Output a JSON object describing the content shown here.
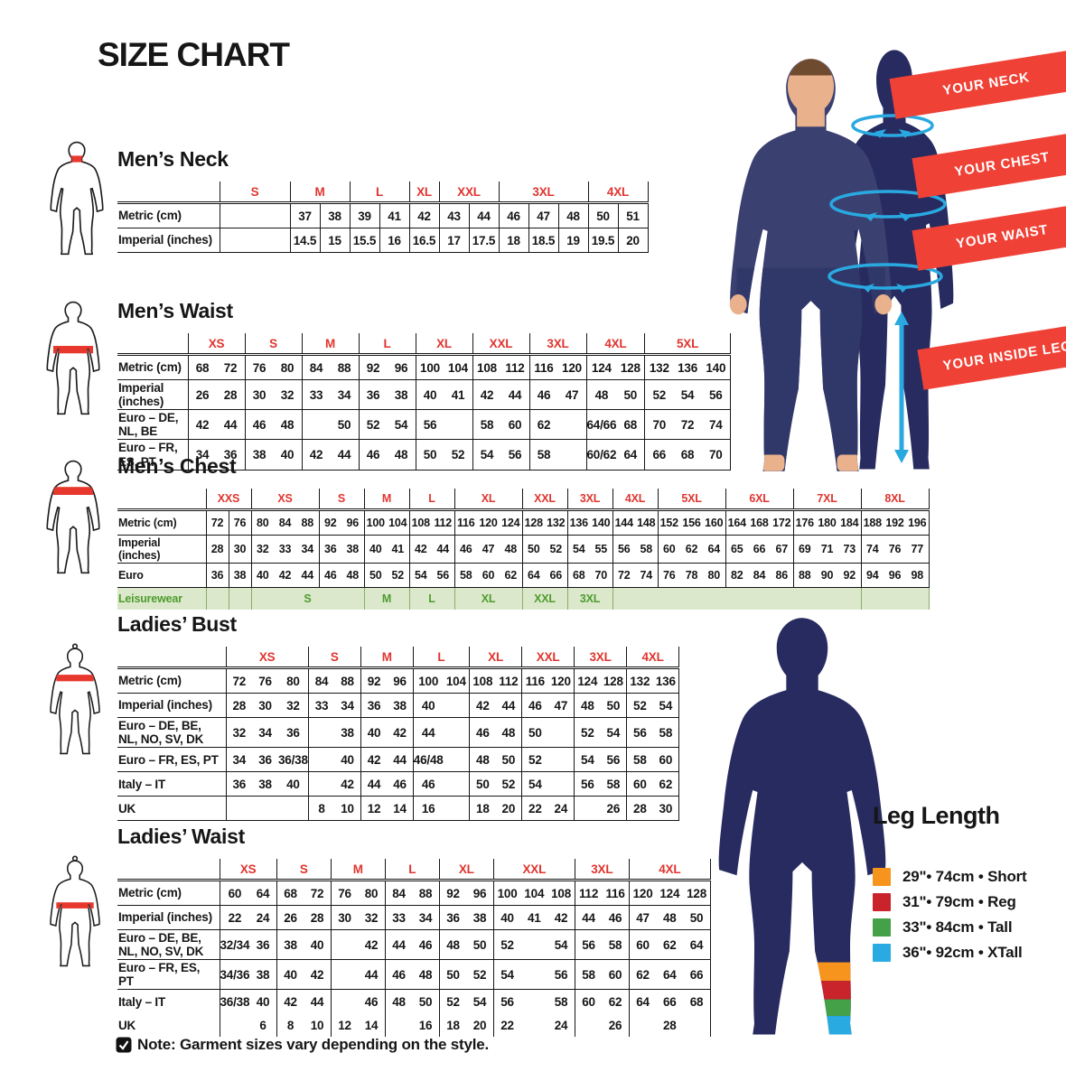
{
  "page_title": "SIZE CHART",
  "note": {
    "icon": "checkbox-check-icon",
    "text": "Note: Garment sizes vary depending on the style."
  },
  "banners": {
    "neck": "YOUR NECK",
    "chest": "YOUR CHEST",
    "waist": "YOUR WAIST",
    "inside_leg": "YOUR INSIDE LEG"
  },
  "leg_length": {
    "title": "Leg Length",
    "items": [
      {
        "color": "#F7941E",
        "label": "29\"• 74cm • Short"
      },
      {
        "color": "#C9242B",
        "label": "31\"• 79cm • Reg"
      },
      {
        "color": "#44A147",
        "label": "33\"• 84cm • Tall"
      },
      {
        "color": "#29ABE2",
        "label": "36\"• 92cm • XTall"
      }
    ]
  },
  "colors": {
    "accent_red": "#E8372C",
    "header_red": "#E0352F",
    "banner_red": "#EF4136",
    "navy": "#272B60",
    "cyan": "#2AA9E1",
    "leisure_bg": "#DBE8CB",
    "leisure_green": "#4E9C2E",
    "skin": "#E9B18C",
    "hair": "#6E4A2E",
    "shirt_navy": "#3A4170",
    "pants_navy": "#303769"
  },
  "icons": {
    "figure_icons": [
      "mens-neck-figure",
      "mens-waist-figure",
      "mens-chest-figure",
      "ladies-bust-figure",
      "ladies-waist-figure"
    ],
    "scene_icons": [
      "neck-measure-ellipse",
      "chest-measure-ellipse",
      "waist-measure-ellipse",
      "inside-leg-arrow"
    ],
    "note_icon": "checkbox-check-icon"
  },
  "tables": [
    {
      "name": "mens-neck",
      "title": "Men’s Neck",
      "groups": [
        {
          "label": "S",
          "span": 1
        },
        {
          "label": "M",
          "span": 2,
          "div": true
        },
        {
          "label": "L",
          "span": 2,
          "div": true
        },
        {
          "label": "XL",
          "span": 1
        },
        {
          "label": "XXL",
          "span": 2,
          "div": true
        },
        {
          "label": "3XL",
          "span": 3,
          "div": true
        },
        {
          "label": "4XL",
          "span": 2,
          "div": true
        }
      ],
      "rows": [
        {
          "label": "Metric (cm)",
          "cells": [
            "",
            "37",
            "38",
            "39",
            "41",
            "42",
            "43",
            "44",
            "46",
            "47",
            "48",
            "50",
            "51"
          ]
        },
        {
          "label": "Imperial (inches)",
          "cells": [
            "",
            "14.5",
            "15",
            "15.5",
            "16",
            "16.5",
            "17",
            "17.5",
            "18",
            "18.5",
            "19",
            "19.5",
            "20"
          ]
        }
      ]
    },
    {
      "name": "mens-waist",
      "title": "Men’s Waist",
      "groups": [
        {
          "label": "XS",
          "span": 2
        },
        {
          "label": "S",
          "span": 2
        },
        {
          "label": "M",
          "span": 2
        },
        {
          "label": "L",
          "span": 2
        },
        {
          "label": "XL",
          "span": 2
        },
        {
          "label": "XXL",
          "span": 2
        },
        {
          "label": "3XL",
          "span": 2
        },
        {
          "label": "4XL",
          "span": 2
        },
        {
          "label": "5XL",
          "span": 3
        }
      ],
      "rows": [
        {
          "label": "Metric (cm)",
          "cells": [
            "68",
            "72",
            "76",
            "80",
            "84",
            "88",
            "92",
            "96",
            "100",
            "104",
            "108",
            "112",
            "116",
            "120",
            "124",
            "128",
            "132",
            "136",
            "140"
          ]
        },
        {
          "label": "Imperial (inches)",
          "cells": [
            "26",
            "28",
            "30",
            "32",
            "33",
            "34",
            "36",
            "38",
            "40",
            "41",
            "42",
            "44",
            "46",
            "47",
            "48",
            "50",
            "52",
            "54",
            "56"
          ]
        },
        {
          "label": "Euro – DE, NL, BE",
          "cells": [
            "42",
            "44",
            "46",
            "48",
            "",
            "50",
            "52",
            "54",
            "56",
            "",
            "58",
            "60",
            "62",
            "",
            "64/66",
            "68",
            "70",
            "72",
            "74"
          ]
        },
        {
          "label": "Euro – FR, ES, PT",
          "cells": [
            "34",
            "36",
            "38",
            "40",
            "42",
            "44",
            "46",
            "48",
            "50",
            "52",
            "54",
            "56",
            "58",
            "",
            "60/62",
            "64",
            "66",
            "68",
            "70"
          ]
        }
      ]
    },
    {
      "name": "mens-chest",
      "title": "Men’s Chest",
      "groups": [
        {
          "label": "XXS",
          "span": 2,
          "div": true
        },
        {
          "label": "XS",
          "span": 3
        },
        {
          "label": "S",
          "span": 2
        },
        {
          "label": "M",
          "span": 2
        },
        {
          "label": "L",
          "span": 2
        },
        {
          "label": "XL",
          "span": 3
        },
        {
          "label": "XXL",
          "span": 2
        },
        {
          "label": "3XL",
          "span": 2
        },
        {
          "label": "4XL",
          "span": 2
        },
        {
          "label": "5XL",
          "span": 3
        },
        {
          "label": "6XL",
          "span": 3
        },
        {
          "label": "7XL",
          "span": 3
        },
        {
          "label": "8XL",
          "span": 3
        }
      ],
      "rows": [
        {
          "label": "Metric (cm)",
          "cells": [
            "72",
            "76",
            "80",
            "84",
            "88",
            "92",
            "96",
            "100",
            "104",
            "108",
            "112",
            "116",
            "120",
            "124",
            "128",
            "132",
            "136",
            "140",
            "144",
            "148",
            "152",
            "156",
            "160",
            "164",
            "168",
            "172",
            "176",
            "180",
            "184",
            "188",
            "192",
            "196"
          ]
        },
        {
          "label": "Imperial (inches)",
          "cells": [
            "28",
            "30",
            "32",
            "33",
            "34",
            "36",
            "38",
            "40",
            "41",
            "42",
            "44",
            "46",
            "47",
            "48",
            "50",
            "52",
            "54",
            "55",
            "56",
            "58",
            "60",
            "62",
            "64",
            "65",
            "66",
            "67",
            "69",
            "71",
            "73",
            "74",
            "76",
            "77"
          ]
        },
        {
          "label": "Euro",
          "cells": [
            "36",
            "38",
            "40",
            "42",
            "44",
            "46",
            "48",
            "50",
            "52",
            "54",
            "56",
            "58",
            "60",
            "62",
            "64",
            "66",
            "68",
            "70",
            "72",
            "74",
            "76",
            "78",
            "80",
            "82",
            "84",
            "86",
            "88",
            "90",
            "92",
            "94",
            "96",
            "98"
          ]
        }
      ],
      "leisure": {
        "label": "Leisurewear",
        "cells": [
          {
            "label": "",
            "span": 1
          },
          {
            "label": "",
            "span": 1
          },
          {
            "label": "S",
            "span": 5
          },
          {
            "label": "M",
            "span": 2
          },
          {
            "label": "L",
            "span": 2
          },
          {
            "label": "XL",
            "span": 3
          },
          {
            "label": "XXL",
            "span": 2
          },
          {
            "label": "3XL",
            "span": 2
          },
          {
            "label": "",
            "span": 11
          },
          {
            "label": "",
            "span": 3
          }
        ]
      }
    },
    {
      "name": "ladies-bust",
      "title": "Ladies’ Bust",
      "groups": [
        {
          "label": "XS",
          "span": 3
        },
        {
          "label": "S",
          "span": 2
        },
        {
          "label": "M",
          "span": 2
        },
        {
          "label": "L",
          "span": 2
        },
        {
          "label": "XL",
          "span": 2
        },
        {
          "label": "XXL",
          "span": 2
        },
        {
          "label": "3XL",
          "span": 2
        },
        {
          "label": "4XL",
          "span": 2
        }
      ],
      "rows": [
        {
          "label": "Metric (cm)",
          "cells": [
            "72",
            "76",
            "80",
            "84",
            "88",
            "92",
            "96",
            "100",
            "104",
            "108",
            "112",
            "116",
            "120",
            "124",
            "128",
            "132",
            "136"
          ]
        },
        {
          "label": "Imperial (inches)",
          "cells": [
            "28",
            "30",
            "32",
            "33",
            "34",
            "36",
            "38",
            "40",
            "",
            "42",
            "44",
            "46",
            "47",
            "48",
            "50",
            "52",
            "54"
          ]
        },
        {
          "label": "Euro –  DE, BE, NL, NO, SV, DK",
          "cells": [
            "32",
            "34",
            "36",
            "",
            "38",
            "40",
            "42",
            "44",
            "",
            "46",
            "48",
            "50",
            "",
            "52",
            "54",
            "56",
            "58"
          ]
        },
        {
          "label": "Euro – FR, ES, PT",
          "cells": [
            "34",
            "36",
            "36/38",
            "",
            "40",
            "42",
            "44",
            "46/48",
            "",
            "48",
            "50",
            "52",
            "",
            "54",
            "56",
            "58",
            "60"
          ]
        },
        {
          "label": "Italy – IT",
          "cells": [
            "36",
            "38",
            "40",
            "",
            "42",
            "44",
            "46",
            "46",
            "",
            "50",
            "52",
            "54",
            "",
            "56",
            "58",
            "60",
            "62"
          ]
        },
        {
          "label": "UK",
          "cells": [
            "",
            "",
            "",
            "8",
            "10",
            "12",
            "14",
            "16",
            "",
            "18",
            "20",
            "22",
            "24",
            "",
            "26",
            "28",
            "30"
          ]
        }
      ]
    },
    {
      "name": "ladies-waist",
      "title": "Ladies’ Waist",
      "groups": [
        {
          "label": "XS",
          "span": 2
        },
        {
          "label": "S",
          "span": 2
        },
        {
          "label": "M",
          "span": 2
        },
        {
          "label": "L",
          "span": 2
        },
        {
          "label": "XL",
          "span": 2
        },
        {
          "label": "XXL",
          "span": 3
        },
        {
          "label": "3XL",
          "span": 2
        },
        {
          "label": "4XL",
          "span": 3
        }
      ],
      "rows": [
        {
          "label": "Metric (cm)",
          "cells": [
            "60",
            "64",
            "68",
            "72",
            "76",
            "80",
            "84",
            "88",
            "92",
            "96",
            "100",
            "104",
            "108",
            "112",
            "116",
            "120",
            "124",
            "128"
          ]
        },
        {
          "label": "Imperial (inches)",
          "cells": [
            "22",
            "24",
            "26",
            "28",
            "30",
            "32",
            "33",
            "34",
            "36",
            "38",
            "40",
            "41",
            "42",
            "44",
            "46",
            "47",
            "48",
            "50"
          ]
        },
        {
          "label": "Euro – DE, BE, NL, NO, SV, DK",
          "cells": [
            "32/34",
            "36",
            "38",
            "40",
            "",
            "42",
            "44",
            "46",
            "48",
            "50",
            "52",
            "",
            "54",
            "56",
            "58",
            "60",
            "62",
            "64"
          ]
        },
        {
          "label": "Euro – FR, ES, PT",
          "cells": [
            "34/36",
            "38",
            "40",
            "42",
            "",
            "44",
            "46",
            "48",
            "50",
            "52",
            "54",
            "",
            "56",
            "58",
            "60",
            "62",
            "64",
            "66"
          ]
        },
        {
          "label": "Italy – IT",
          "nb": true,
          "cells": [
            "36/38",
            "40",
            "42",
            "44",
            "",
            "46",
            "48",
            "50",
            "52",
            "54",
            "56",
            "",
            "58",
            "60",
            "62",
            "64",
            "66",
            "68"
          ]
        },
        {
          "label": "UK",
          "nb": true,
          "cells": [
            "",
            "6",
            "8",
            "10",
            "12",
            "14",
            "",
            "16",
            "18",
            "20",
            "22",
            "",
            "24",
            "",
            "26",
            "",
            "28",
            ""
          ]
        }
      ]
    }
  ]
}
